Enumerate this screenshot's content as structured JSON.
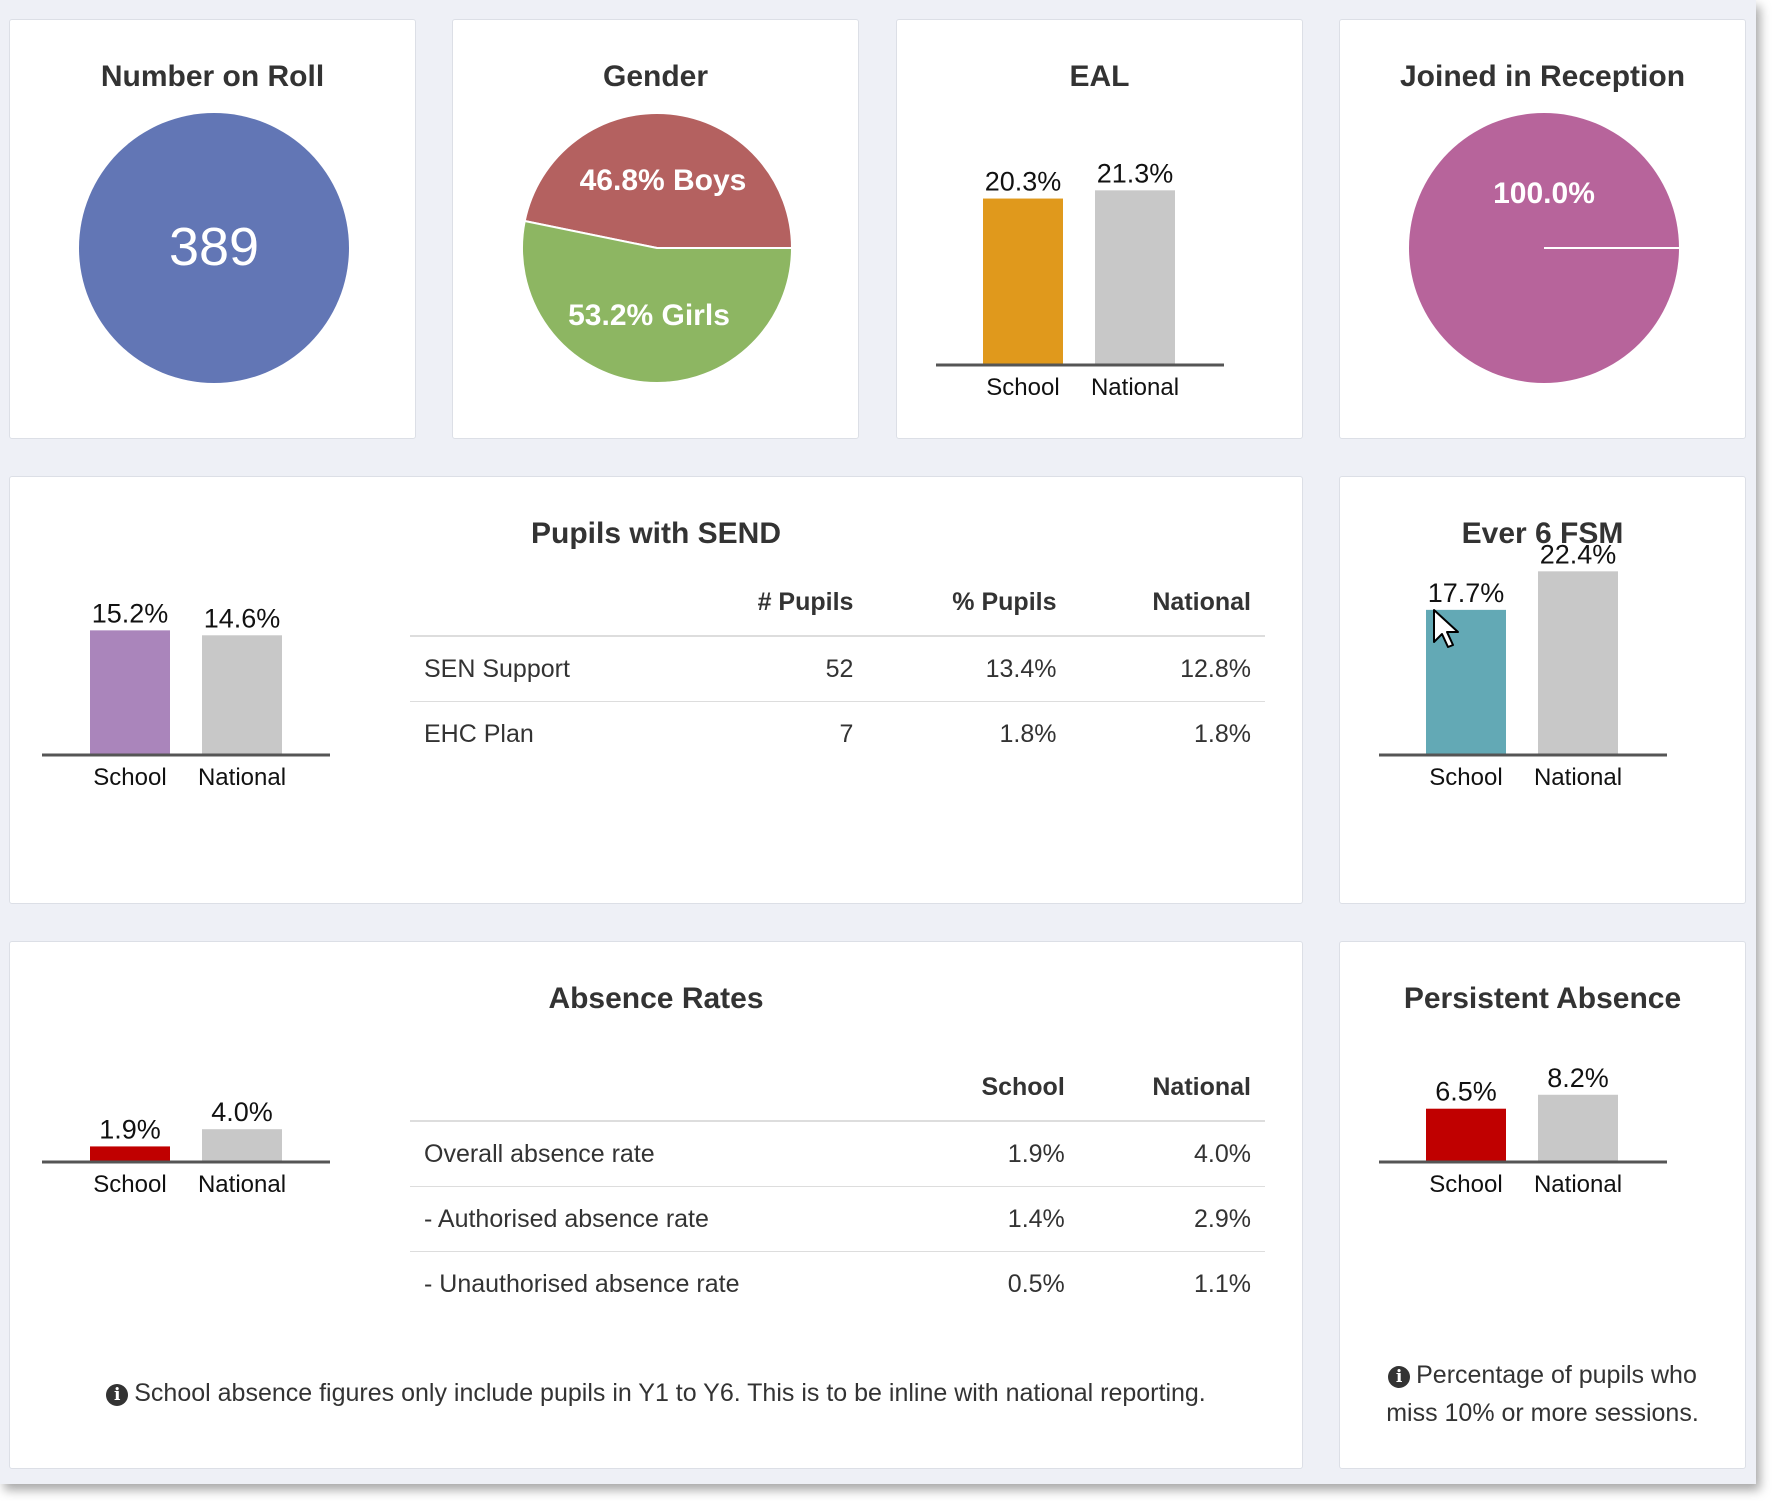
{
  "cards": {
    "number_on_roll": {
      "title": "Number on Roll",
      "value": "389",
      "color": "#6276b5"
    },
    "gender": {
      "title": "Gender",
      "boys_label": "46.8% Boys",
      "girls_label": "53.2% Girls",
      "boys_color": "#b46160",
      "girls_color": "#8db662"
    },
    "eal": {
      "title": "EAL"
    },
    "joined_in_reception": {
      "title": "Joined in Reception",
      "value_label": "100.0%",
      "color": "#b7649b"
    },
    "send": {
      "title": "Pupils with SEND",
      "table": {
        "headers": [
          "",
          "# Pupils",
          "% Pupils",
          "National"
        ],
        "rows": [
          [
            "SEN Support",
            "52",
            "13.4%",
            "12.8%"
          ],
          [
            "EHC Plan",
            "7",
            "1.8%",
            "1.8%"
          ]
        ]
      }
    },
    "fsm": {
      "title": "Ever 6 FSM"
    },
    "absence": {
      "title": "Absence Rates",
      "table": {
        "headers": [
          "",
          "School",
          "National"
        ],
        "rows": [
          [
            "Overall absence rate",
            "1.9%",
            "4.0%"
          ],
          [
            "- Authorised absence rate",
            "1.4%",
            "2.9%"
          ],
          [
            "- Unauthorised absence rate",
            "0.5%",
            "1.1%"
          ]
        ]
      },
      "note": "School absence figures only include pupils in Y1 to Y6. This is to be inline with national reporting."
    },
    "persistent_absence": {
      "title": "Persistent Absence",
      "note_line1": "Percentage of pupils who",
      "note_line2": "miss 10% or more sessions."
    }
  },
  "chart_data": [
    {
      "id": "eal",
      "type": "bar",
      "categories": [
        "School",
        "National"
      ],
      "values": [
        20.3,
        21.3
      ],
      "labels": [
        "20.3%",
        "21.3%"
      ],
      "colors": [
        "#e0991c",
        "#c8c8c8"
      ]
    },
    {
      "id": "send",
      "type": "bar",
      "categories": [
        "School",
        "National"
      ],
      "values": [
        15.2,
        14.6
      ],
      "labels": [
        "15.2%",
        "14.6%"
      ],
      "colors": [
        "#aa85bb",
        "#c8c8c8"
      ]
    },
    {
      "id": "fsm",
      "type": "bar",
      "categories": [
        "School",
        "National"
      ],
      "values": [
        17.7,
        22.4
      ],
      "labels": [
        "17.7%",
        "22.4%"
      ],
      "colors": [
        "#63a9b5",
        "#c8c8c8"
      ]
    },
    {
      "id": "absence",
      "type": "bar",
      "categories": [
        "School",
        "National"
      ],
      "values": [
        1.9,
        4.0
      ],
      "labels": [
        "1.9%",
        "4.0%"
      ],
      "colors": [
        "#c00000",
        "#c8c8c8"
      ]
    },
    {
      "id": "persistent",
      "type": "bar",
      "categories": [
        "School",
        "National"
      ],
      "values": [
        6.5,
        8.2
      ],
      "labels": [
        "6.5%",
        "8.2%"
      ],
      "colors": [
        "#c00000",
        "#c8c8c8"
      ]
    },
    {
      "id": "gender",
      "type": "pie",
      "categories": [
        "Boys",
        "Girls"
      ],
      "values": [
        46.8,
        53.2
      ]
    },
    {
      "id": "reception",
      "type": "pie",
      "categories": [
        "Joined in Reception"
      ],
      "values": [
        100.0
      ]
    }
  ]
}
